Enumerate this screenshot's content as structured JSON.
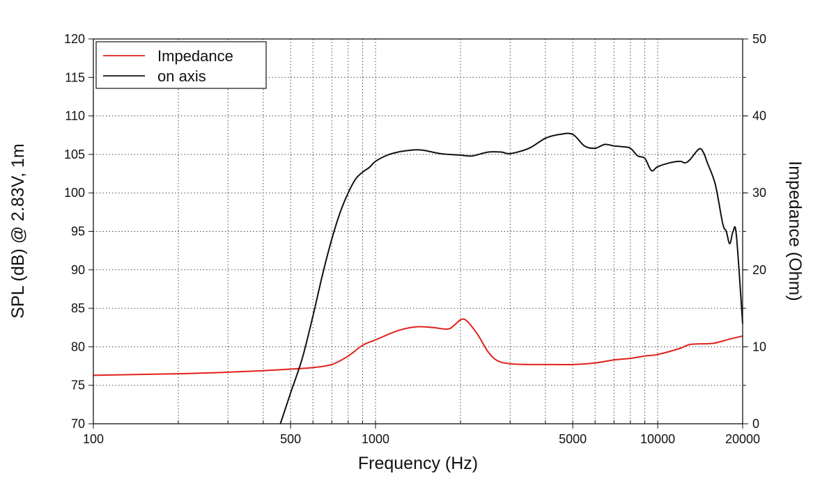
{
  "chart_data": {
    "type": "line",
    "xlabel": "Frequency (Hz)",
    "ylabel": "SPL (dB) @ 2.83V, 1m",
    "y2label": "Impedance (Ohm)",
    "xscale": "log",
    "xlim": [
      100,
      20000
    ],
    "ylim": [
      70,
      120
    ],
    "y2lim": [
      0,
      50
    ],
    "grid": true,
    "legend_position": "top-left",
    "x_tick_labels": [
      "100",
      "500",
      "1000",
      "5000",
      "10000",
      "20000"
    ],
    "x_tick_values": [
      100,
      500,
      1000,
      5000,
      10000,
      20000
    ],
    "y_tick_labels": [
      "70",
      "75",
      "80",
      "85",
      "90",
      "95",
      "100",
      "105",
      "110",
      "115",
      "120"
    ],
    "y_tick_values": [
      70,
      75,
      80,
      85,
      90,
      95,
      100,
      105,
      110,
      115,
      120
    ],
    "y2_tick_labels": [
      "0",
      "10",
      "20",
      "30",
      "40",
      "50"
    ],
    "y2_tick_values": [
      0,
      10,
      20,
      30,
      40,
      50
    ],
    "series": [
      {
        "name": "Impedance",
        "axis": "right",
        "color": "#e0201b",
        "x": [
          100,
          200,
          300,
          400,
          500,
          600,
          700,
          800,
          900,
          1000,
          1200,
          1400,
          1600,
          1800,
          1900,
          2000,
          2100,
          2300,
          2500,
          2700,
          3000,
          3500,
          4000,
          5000,
          6000,
          7000,
          8000,
          9000,
          10000,
          12000,
          13000,
          15000,
          16000,
          18000,
          20000
        ],
        "y": [
          6.3,
          6.5,
          6.7,
          6.9,
          7.1,
          7.3,
          7.7,
          8.8,
          10.2,
          10.9,
          12.1,
          12.6,
          12.5,
          12.3,
          12.8,
          13.5,
          13.4,
          11.6,
          9.4,
          8.2,
          7.8,
          7.7,
          7.7,
          7.7,
          7.9,
          8.3,
          8.5,
          8.8,
          9.0,
          9.8,
          10.3,
          10.4,
          10.5,
          11.0,
          11.4
        ]
      },
      {
        "name": "on axis",
        "axis": "left",
        "color": "#111111",
        "x": [
          460,
          500,
          550,
          600,
          650,
          700,
          750,
          800,
          850,
          900,
          950,
          1000,
          1100,
          1200,
          1300,
          1400,
          1500,
          1700,
          2000,
          2200,
          2500,
          2800,
          3000,
          3500,
          4000,
          4500,
          5000,
          5500,
          6000,
          6500,
          7000,
          7500,
          8000,
          8500,
          9000,
          9500,
          10000,
          11000,
          12000,
          12500,
          13000,
          14000,
          14500,
          15000,
          16000,
          17000,
          17500,
          18000,
          18500,
          19000,
          20000
        ],
        "y": [
          70,
          74,
          78.5,
          84,
          89.5,
          94,
          97.5,
          100,
          101.8,
          102.7,
          103.3,
          104.1,
          104.9,
          105.3,
          105.5,
          105.6,
          105.5,
          105.1,
          104.9,
          104.8,
          105.3,
          105.3,
          105.1,
          105.8,
          107.1,
          107.6,
          107.6,
          106.1,
          105.8,
          106.3,
          106.1,
          106,
          105.8,
          104.8,
          104.5,
          102.9,
          103.4,
          103.9,
          104.1,
          103.9,
          104.3,
          105.7,
          105.3,
          103.9,
          101.1,
          96,
          95,
          93.4,
          95,
          94.5,
          83
        ]
      }
    ]
  }
}
